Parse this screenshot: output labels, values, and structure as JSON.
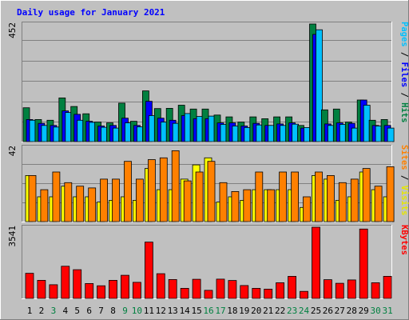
{
  "chart_data": [
    {
      "type": "bar",
      "title": "Daily usage for January 2021",
      "categories": [
        "1",
        "2",
        "3",
        "4",
        "5",
        "6",
        "7",
        "8",
        "9",
        "10",
        "11",
        "12",
        "13",
        "14",
        "15",
        "16",
        "17",
        "18",
        "19",
        "20",
        "21",
        "22",
        "23",
        "24",
        "25",
        "26",
        "27",
        "28",
        "29",
        "30",
        "31"
      ],
      "weekend_days": [
        "3",
        "9",
        "10",
        "16",
        "17",
        "23",
        "24",
        "30",
        "31"
      ],
      "ymax_label": "452",
      "ymax": 452,
      "series": [
        {
          "name": "Hits",
          "color": "#008040",
          "values": [
            130,
            85,
            82,
            168,
            135,
            107,
            75,
            72,
            148,
            78,
            195,
            127,
            128,
            140,
            125,
            125,
            102,
            95,
            75,
            95,
            88,
            95,
            95,
            62,
            452,
            122,
            125,
            75,
            160,
            82,
            85
          ]
        },
        {
          "name": "Files",
          "color": "#0000ff",
          "values": [
            85,
            70,
            62,
            118,
            105,
            78,
            60,
            62,
            90,
            62,
            155,
            90,
            82,
            100,
            88,
            88,
            72,
            72,
            60,
            70,
            62,
            68,
            72,
            52,
            412,
            68,
            72,
            70,
            160,
            62,
            62
          ]
        },
        {
          "name": "Pages",
          "color": "#00c0ff",
          "values": [
            82,
            62,
            56,
            112,
            82,
            74,
            55,
            52,
            72,
            57,
            100,
            75,
            70,
            108,
            97,
            98,
            66,
            60,
            54,
            64,
            62,
            62,
            67,
            54,
            430,
            62,
            66,
            52,
            140,
            60,
            52
          ]
        }
      ],
      "ylabel": "Pages / Files / Hits"
    },
    {
      "type": "bar",
      "categories": [
        "1",
        "2",
        "3",
        "4",
        "5",
        "6",
        "7",
        "8",
        "9",
        "10",
        "11",
        "12",
        "13",
        "14",
        "15",
        "16",
        "17",
        "18",
        "19",
        "20",
        "21",
        "22",
        "23",
        "24",
        "25",
        "26",
        "27",
        "28",
        "29",
        "30",
        "31"
      ],
      "ymax_label": "42",
      "ymax": 42,
      "series": [
        {
          "name": "Visits",
          "color": "#ffff00",
          "values": [
            26,
            14,
            14,
            20,
            14,
            14,
            11,
            12,
            14,
            12,
            30,
            18,
            18,
            24,
            32,
            36,
            11,
            14,
            12,
            18,
            18,
            18,
            18,
            8,
            26,
            24,
            12,
            14,
            28,
            18,
            14
          ]
        },
        {
          "name": "Sites",
          "color": "#ff8000",
          "values": [
            26,
            18,
            28,
            22,
            20,
            19,
            24,
            24,
            34,
            24,
            35,
            36,
            40,
            23,
            28,
            34,
            22,
            17,
            18,
            28,
            18,
            28,
            28,
            14,
            28,
            26,
            22,
            24,
            30,
            20,
            31
          ]
        }
      ],
      "ylabel": "Sites / Visits"
    },
    {
      "type": "bar",
      "categories": [
        "1",
        "2",
        "3",
        "4",
        "5",
        "6",
        "7",
        "8",
        "9",
        "10",
        "11",
        "12",
        "13",
        "14",
        "15",
        "16",
        "17",
        "18",
        "19",
        "20",
        "21",
        "22",
        "23",
        "24",
        "25",
        "26",
        "27",
        "28",
        "29",
        "30",
        "31"
      ],
      "ymax_label": "3541",
      "ymax": 3541,
      "series": [
        {
          "name": "KBytes",
          "color": "#ff0000",
          "values": [
            1250,
            900,
            680,
            1600,
            1430,
            740,
            630,
            900,
            1150,
            800,
            2800,
            1230,
            940,
            500,
            950,
            400,
            960,
            890,
            640,
            500,
            460,
            780,
            1100,
            350,
            3541,
            930,
            750,
            920,
            3450,
            780,
            1100
          ]
        }
      ],
      "ylabel": "KBytes"
    }
  ]
}
